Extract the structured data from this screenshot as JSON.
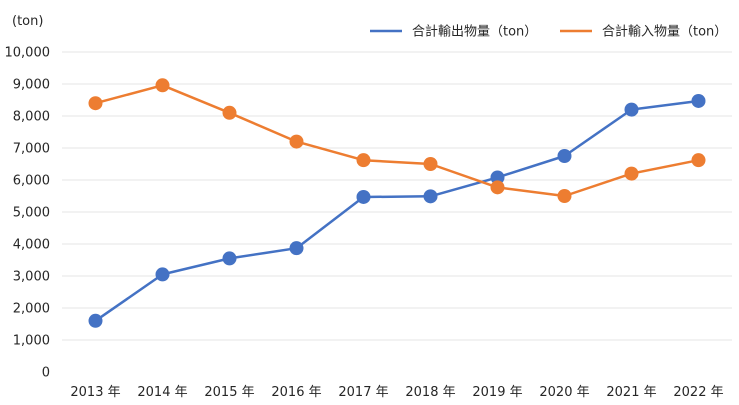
{
  "chart_data": {
    "type": "line",
    "title": "",
    "ylabel_unit": "(ton)",
    "categories": [
      "2013 年",
      "2014 年",
      "2015 年",
      "2016 年",
      "2017 年",
      "2018 年",
      "2019 年",
      "2020 年",
      "2021 年",
      "2022 年"
    ],
    "ylim": [
      0,
      10000
    ],
    "yticks": [
      "0",
      "1,000",
      "2,000",
      "3,000",
      "4,000",
      "5,000",
      "6,000",
      "7,000",
      "8,000",
      "9,000",
      "10,000"
    ],
    "grid": true,
    "legend_position": "top-right",
    "series": [
      {
        "name": "合計輸出物量（ton）",
        "color": "#4472C4",
        "values": [
          1600,
          3050,
          3550,
          3870,
          5470,
          5490,
          6080,
          6750,
          8200,
          8470
        ]
      },
      {
        "name": "合計輸入物量（ton）",
        "color": "#ED7D31",
        "values": [
          8400,
          8960,
          8100,
          7200,
          6620,
          6500,
          5770,
          5500,
          6200,
          6620
        ]
      }
    ]
  }
}
